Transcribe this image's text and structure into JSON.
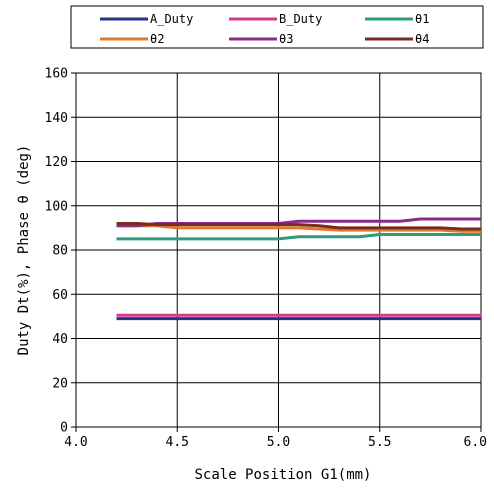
{
  "chart_data": {
    "type": "line",
    "xlabel": "Scale Position G1(mm)",
    "ylabel": "Duty Dt(%), Phase θ (deg)",
    "xlim": [
      4.0,
      6.0
    ],
    "ylim": [
      0,
      160
    ],
    "x_ticks": [
      "4.0",
      "4.5",
      "5.0",
      "5.5",
      "6.0"
    ],
    "y_ticks": [
      "0",
      "20",
      "40",
      "60",
      "80",
      "100",
      "120",
      "140",
      "160"
    ],
    "grid": true,
    "legend_position": "top",
    "x": [
      4.2,
      4.3,
      4.4,
      4.5,
      4.6,
      4.7,
      4.8,
      4.9,
      5.0,
      5.1,
      5.2,
      5.3,
      5.4,
      5.5,
      5.6,
      5.7,
      5.8,
      5.9,
      6.0
    ],
    "series": [
      {
        "name": "A_Duty",
        "color": "#2a2f8a",
        "values": [
          49,
          49,
          49,
          49,
          49,
          49,
          49,
          49,
          49,
          49,
          49,
          49,
          49,
          49,
          49,
          49,
          49,
          49,
          49
        ]
      },
      {
        "name": "B_Duty",
        "color": "#d63a8c",
        "values": [
          50.5,
          50.5,
          50.5,
          50.5,
          50.5,
          50.5,
          50.5,
          50.5,
          50.5,
          50.5,
          50.5,
          50.5,
          50.5,
          50.5,
          50.5,
          50.5,
          50.5,
          50.5,
          50.5
        ]
      },
      {
        "name": "θ1",
        "color": "#2f9a7c",
        "values": [
          85,
          85,
          85,
          85,
          85,
          85,
          85,
          85,
          85,
          86,
          86,
          86,
          86,
          87,
          87,
          87,
          87,
          87,
          87
        ]
      },
      {
        "name": "θ2",
        "color": "#e07b2e",
        "values": [
          91,
          91,
          91,
          90,
          90,
          90,
          90,
          90,
          90,
          90,
          89.5,
          89,
          89,
          89,
          89,
          89,
          89,
          88.5,
          88.5
        ]
      },
      {
        "name": "θ3",
        "color": "#8a2a8a",
        "values": [
          91,
          91,
          92,
          92,
          92,
          92,
          92,
          92,
          92,
          93,
          93,
          93,
          93,
          93,
          93,
          94,
          94,
          94,
          94
        ]
      },
      {
        "name": "θ4",
        "color": "#7a2a1e",
        "values": [
          92,
          92,
          91.5,
          91.5,
          91.5,
          91.5,
          91.5,
          91.5,
          91.5,
          91.5,
          91,
          90,
          90,
          90,
          90,
          90,
          90,
          89.5,
          89.5
        ]
      }
    ]
  }
}
